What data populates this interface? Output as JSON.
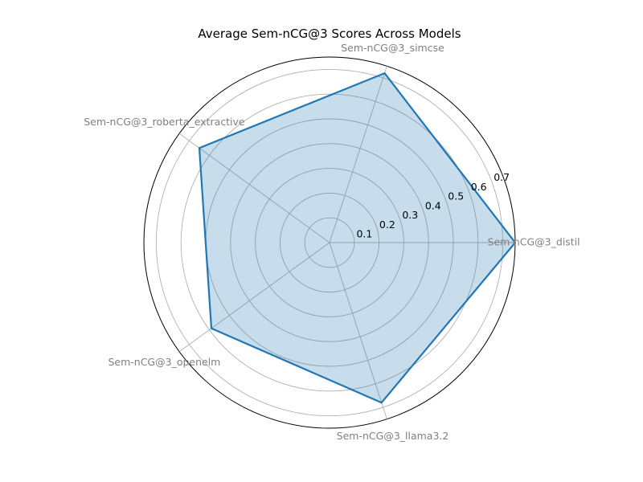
{
  "chart_data": {
    "type": "radar",
    "title": "Average Sem-nCG@3 Scores Across Models",
    "categories": [
      "Sem-nCG@3_distil",
      "Sem-nCG@3_simcse",
      "Sem-nCG@3_roberta_extractive",
      "Sem-nCG@3_openelm",
      "Sem-nCG@3_llama3.2"
    ],
    "series": [
      {
        "name": "",
        "values": [
          0.75,
          0.72,
          0.65,
          0.59,
          0.68
        ]
      }
    ],
    "radial_ticks": [
      "0.1",
      "0.2",
      "0.3",
      "0.4",
      "0.5",
      "0.6",
      "0.7"
    ],
    "rlim": [
      0,
      0.75
    ],
    "grid": true,
    "colors": {
      "line": "#1f77b4",
      "fill": "#1f77b4",
      "grid": "#b0b0b0",
      "outer": "#000000"
    }
  }
}
